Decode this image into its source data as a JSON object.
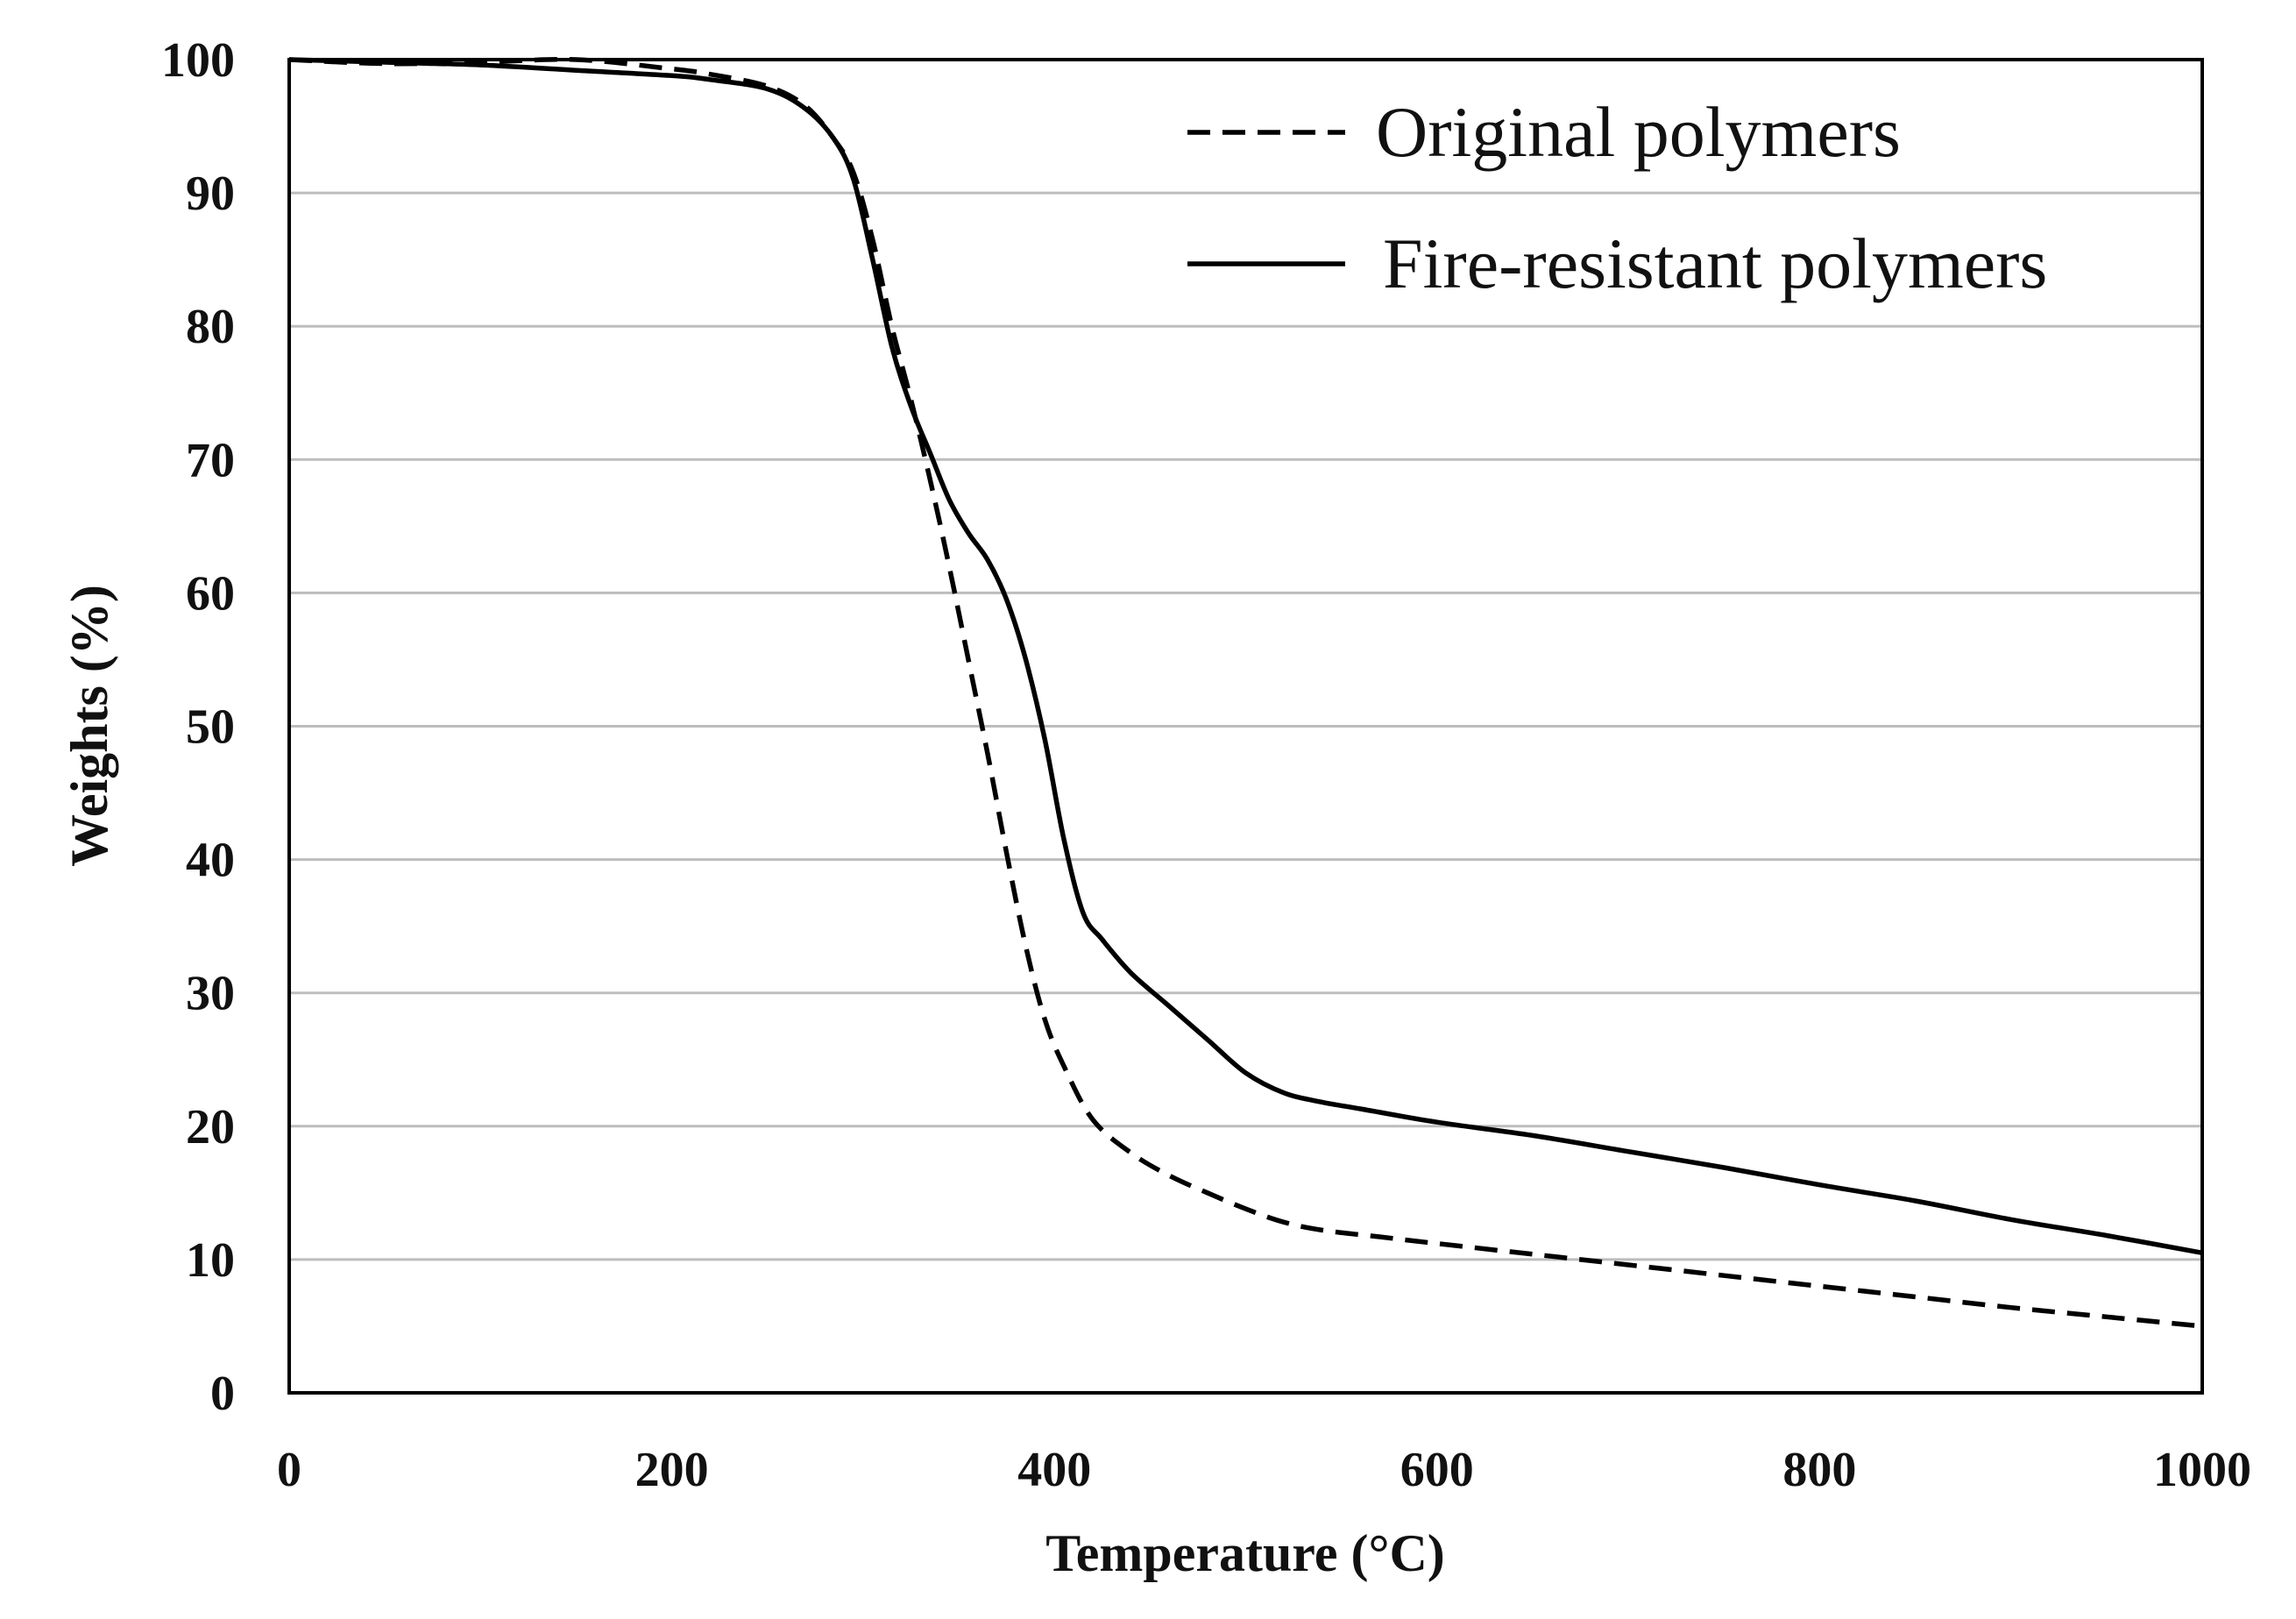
{
  "chart_data": {
    "type": "line",
    "title": "",
    "xlabel": "Temperature (°C)",
    "ylabel": "Weights (%)",
    "xlim": [
      0,
      1000
    ],
    "ylim": [
      0,
      100
    ],
    "xticks": [
      0,
      200,
      400,
      600,
      800,
      1000
    ],
    "yticks": [
      0,
      10,
      20,
      30,
      40,
      50,
      60,
      70,
      80,
      90,
      100
    ],
    "grid": "horizontal",
    "legend_position": "top-right",
    "series": [
      {
        "name": "Original polymers",
        "style": "dashed",
        "color": "#000000",
        "x": [
          0,
          50,
          100,
          150,
          200,
          220,
          250,
          270,
          285,
          295,
          305,
          315,
          325,
          335,
          345,
          355,
          365,
          375,
          385,
          395,
          405,
          420,
          440,
          460,
          480,
          500,
          520,
          540,
          570,
          600,
          650,
          700,
          750,
          800,
          850,
          900,
          950,
          1000
        ],
        "y": [
          100,
          99.7,
          99.8,
          100,
          99.3,
          98.9,
          98.0,
          96.5,
          94.0,
          91.5,
          86.5,
          80.0,
          74.5,
          68.5,
          62.0,
          55.0,
          48.0,
          40.5,
          33.5,
          28.0,
          24.5,
          20.5,
          18.0,
          16.3,
          15.0,
          13.8,
          12.8,
          12.2,
          11.7,
          11.2,
          10.4,
          9.6,
          8.8,
          8.0,
          7.2,
          6.4,
          5.7,
          5.0
        ]
      },
      {
        "name": "Fire-resistant polymers",
        "style": "solid",
        "color": "#000000",
        "x": [
          0,
          50,
          100,
          150,
          200,
          220,
          250,
          270,
          285,
          295,
          305,
          315,
          325,
          335,
          345,
          355,
          365,
          375,
          385,
          395,
          405,
          415,
          425,
          440,
          460,
          480,
          500,
          520,
          540,
          560,
          600,
          650,
          700,
          750,
          800,
          850,
          900,
          950,
          1000
        ],
        "y": [
          100,
          99.8,
          99.6,
          99.2,
          98.8,
          98.5,
          97.8,
          96.3,
          94.0,
          91.0,
          85.0,
          78.5,
          74.0,
          70.5,
          67.0,
          64.5,
          62.5,
          59.5,
          55.0,
          49.0,
          41.5,
          36.0,
          34.0,
          31.5,
          29.0,
          26.5,
          24.0,
          22.5,
          21.8,
          21.3,
          20.3,
          19.3,
          18.1,
          16.9,
          15.6,
          14.4,
          13.0,
          11.8,
          10.5
        ]
      }
    ]
  }
}
